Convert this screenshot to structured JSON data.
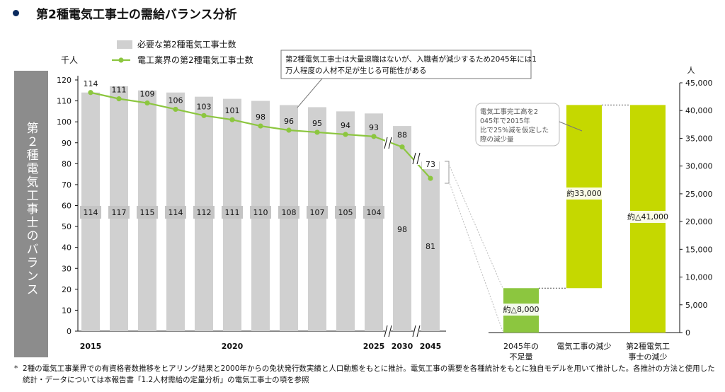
{
  "title": "第2種電気工事士の需給バランス分析",
  "side_label": "第２種電気工事士のバランス",
  "footnote_mark": "*",
  "footnote": "2種の電気工事業界での有資格者数推移をヒアリング結果と2000年からの免状発行数実績と人口動態をもとに推計。電気工事の需要を各種統計をもとに独自モデルを用いて推計した。各推計の方法と使用した統計・データについては本報告書「1.2人材需給の定量分析」の電気工事士の項を参照",
  "chart_data": [
    {
      "type": "bar",
      "unit_left": "千人",
      "legend": [
        {
          "name": "必要な第2種電気工事士数",
          "color": "#d0d0d0",
          "kind": "bar"
        },
        {
          "name": "電工業界の第2種電気工事士数",
          "color": "#8cc63f",
          "kind": "line"
        }
      ],
      "callout": "第2種電気工事士は大量退職はないが、入職者が減少するため2045年には1万人程度の人材不足が生じる可能性がある",
      "x_tick_labels": [
        "2015",
        "2020",
        "2025",
        "2030",
        "2045"
      ],
      "categories": [
        "2015",
        "2016",
        "2017",
        "2018",
        "2019",
        "2020",
        "2021",
        "2022",
        "2023",
        "2024",
        "2025",
        "2030",
        "2045"
      ],
      "series": [
        {
          "name": "必要な第2種電気工事士数",
          "type": "bar",
          "values": [
            114,
            117,
            115,
            114,
            112,
            111,
            110,
            108,
            107,
            105,
            104,
            98,
            81
          ]
        },
        {
          "name": "電工業界の第2種電気工事士数",
          "type": "line",
          "values": [
            114,
            111,
            109,
            106,
            103,
            101,
            98,
            96,
            95,
            94,
            93,
            88,
            73
          ]
        }
      ],
      "ylim": [
        0,
        120
      ],
      "yticks": [
        0,
        10,
        20,
        30,
        40,
        50,
        60,
        70,
        80,
        90,
        100,
        110,
        120
      ],
      "grid": false,
      "axis_breaks_after": [
        "2025",
        "2030"
      ]
    },
    {
      "type": "bar",
      "subtype": "waterfall",
      "unit_right": "人",
      "categories": [
        "2045年の\n不足量",
        "電気工事の減少",
        "第2種電気工\n事士の減少"
      ],
      "bars": [
        {
          "label": "約△8,000",
          "start": 0,
          "end": 8000,
          "color": "#8cc63f"
        },
        {
          "label": "約33,000",
          "start": 8000,
          "end": 41000,
          "color": "#c5d800"
        },
        {
          "label": "約△41,000",
          "start": 0,
          "end": 41000,
          "color": "#c5d800"
        }
      ],
      "ylim": [
        0,
        45000
      ],
      "yticks": [
        0,
        5000,
        10000,
        15000,
        20000,
        25000,
        30000,
        35000,
        40000,
        45000
      ],
      "ytick_labels": [
        "0",
        "5,000",
        "10,000",
        "15,000",
        "20,000",
        "25,000",
        "30,000",
        "35,000",
        "40,000",
        "45,000"
      ],
      "annotation": "電気工事完工高を2045年で2015年比で25%減を仮定した際の減少量"
    }
  ]
}
